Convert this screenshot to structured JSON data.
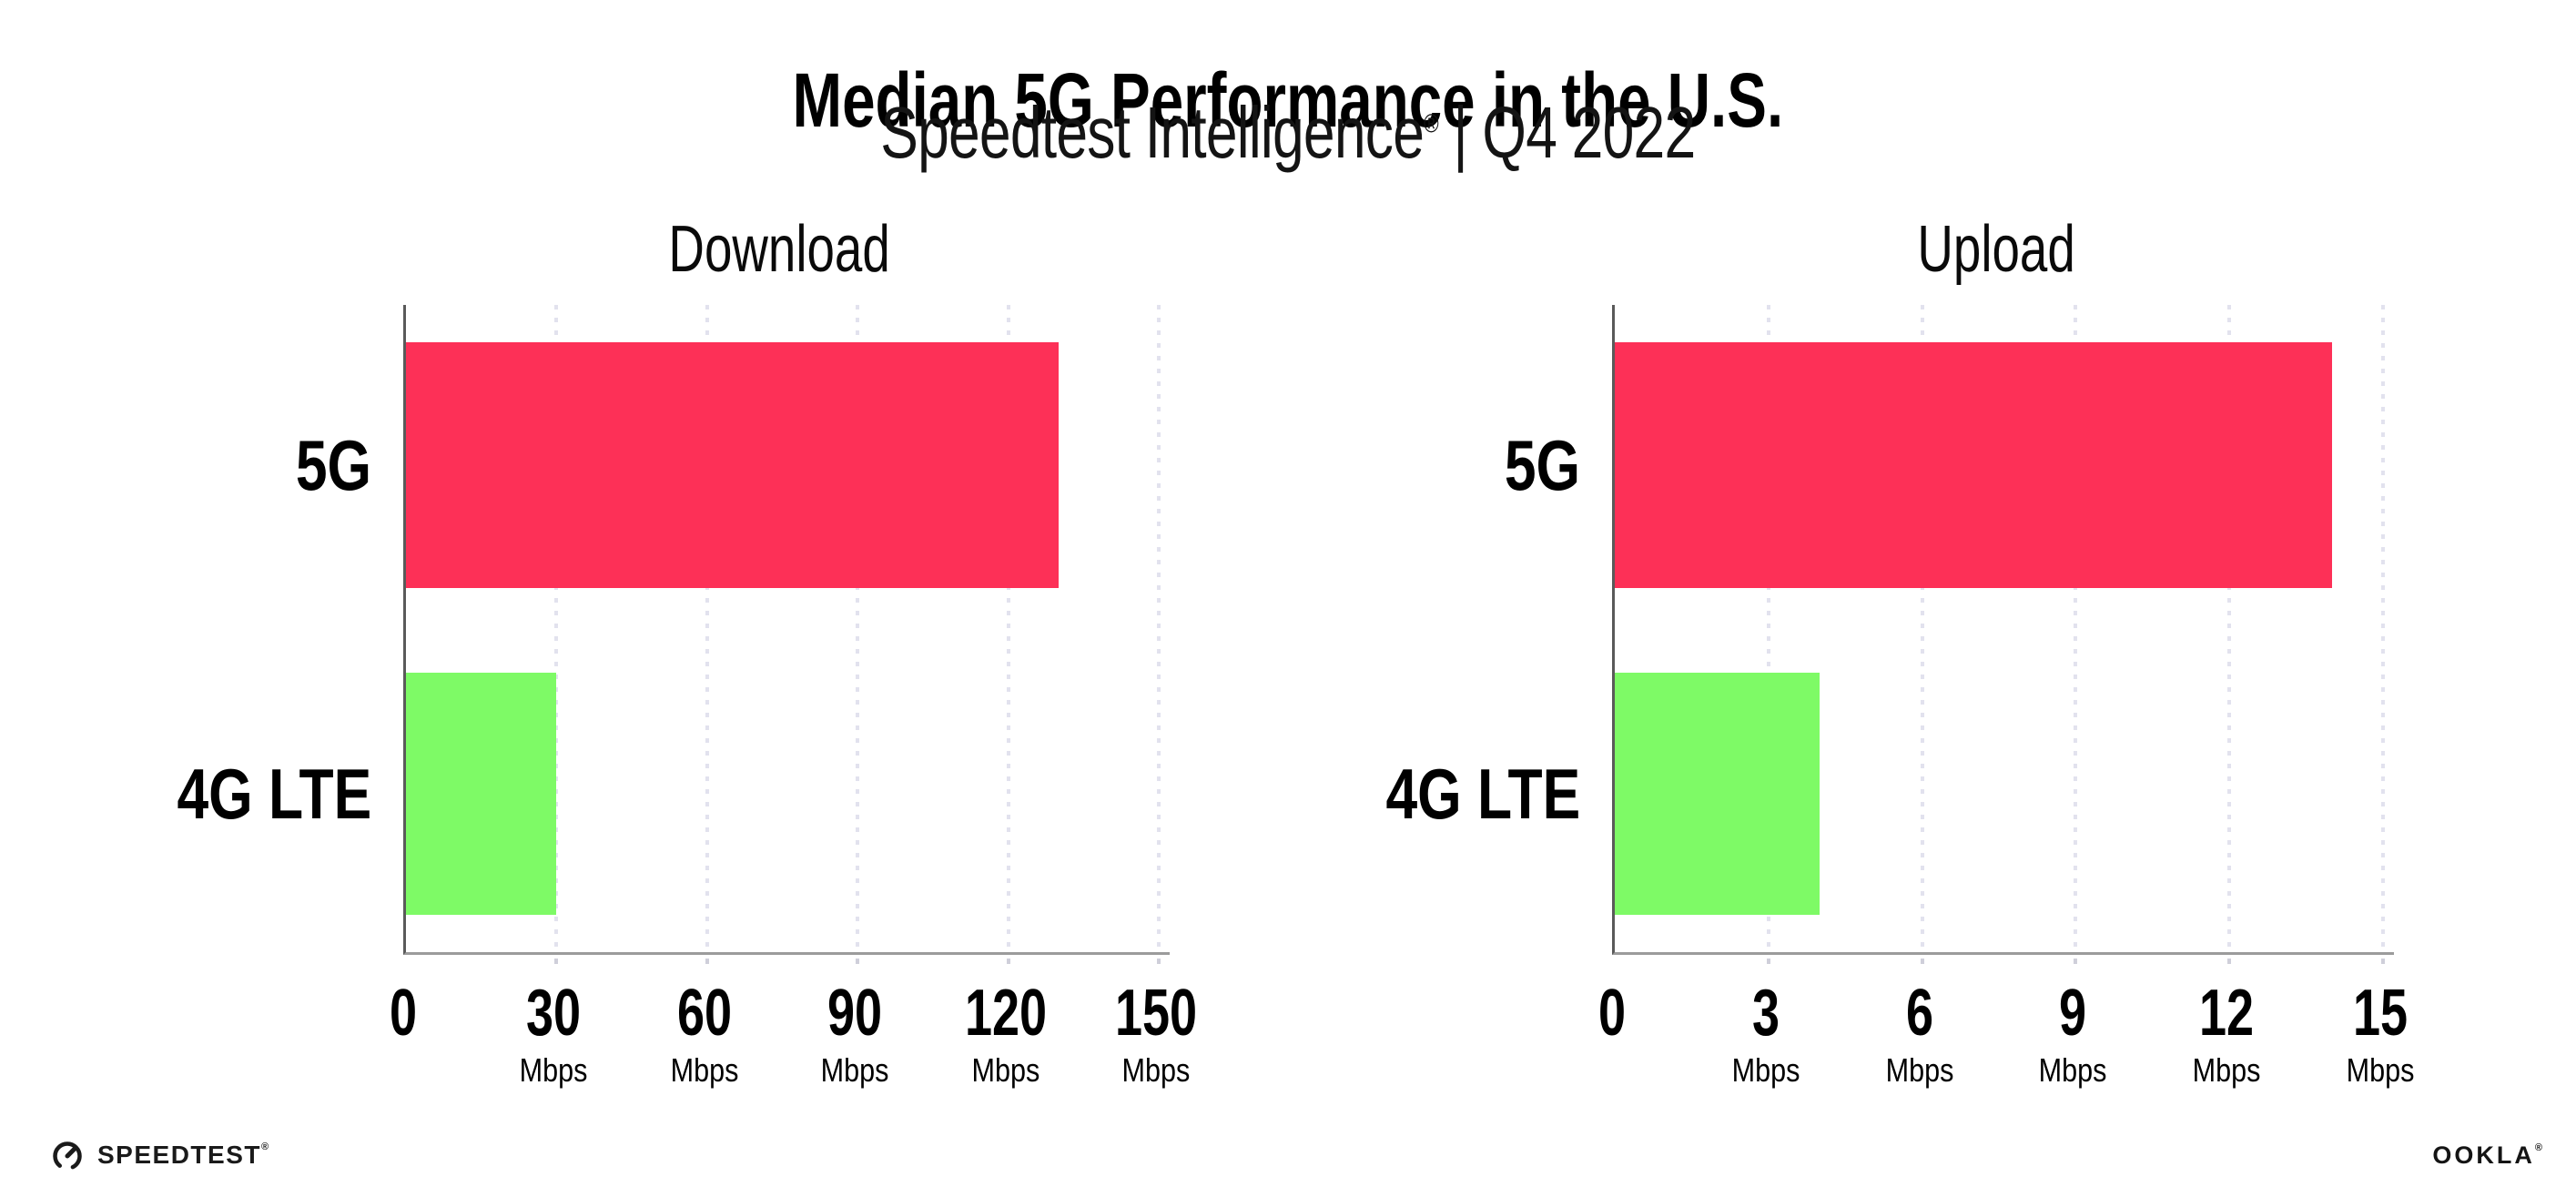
{
  "header": {
    "title": "Median 5G Performance in the U.S.",
    "subtitle_brand": "Speedtest Intelligence",
    "subtitle_reg": "®",
    "subtitle_rest": " | Q4 2022"
  },
  "chart_data": [
    {
      "type": "bar",
      "orientation": "horizontal",
      "title": "Download",
      "categories": [
        "5G",
        "4G LTE"
      ],
      "values": [
        130,
        30
      ],
      "unit": "Mbps",
      "xlabel": "",
      "xlim": [
        0,
        150
      ],
      "xticks": [
        0,
        30,
        60,
        90,
        120,
        150
      ],
      "bar_colors": [
        "#fd3057",
        "#7efa66"
      ],
      "grid": "dotted-vertical",
      "legend": "none"
    },
    {
      "type": "bar",
      "orientation": "horizontal",
      "title": "Upload",
      "categories": [
        "5G",
        "4G LTE"
      ],
      "values": [
        14,
        4
      ],
      "unit": "Mbps",
      "xlabel": "",
      "xlim": [
        0,
        15
      ],
      "xticks": [
        0,
        3,
        6,
        9,
        12,
        15
      ],
      "bar_colors": [
        "#fd3057",
        "#7efa66"
      ],
      "grid": "dotted-vertical",
      "legend": "none"
    }
  ],
  "footer": {
    "speedtest_label": "SPEEDTEST",
    "speedtest_reg": "®",
    "ookla_label": "OOKLA",
    "ookla_reg": "®"
  },
  "colors": {
    "bar_5g": "#fd3057",
    "bar_4g_lte": "#7efa66",
    "gridline": "#e2e2ee",
    "x_axis": "#9b9b9b",
    "y_axis": "#5a5a5a",
    "text": "#000000"
  }
}
